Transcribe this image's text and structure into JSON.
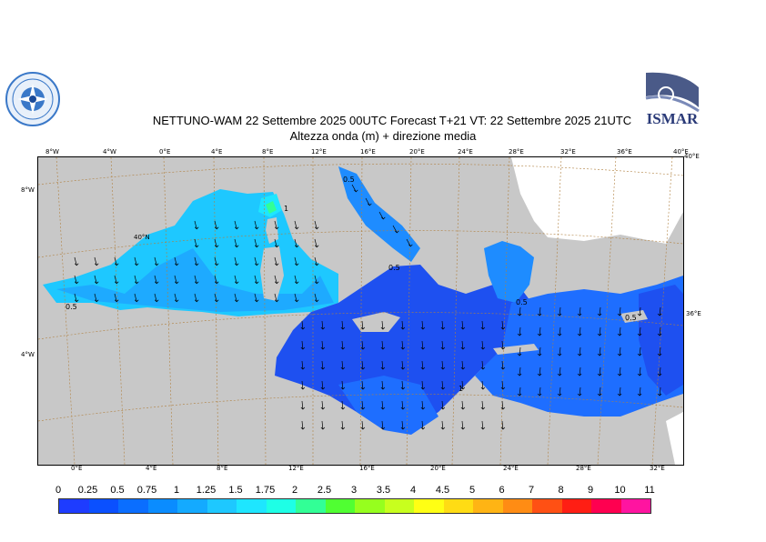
{
  "header": {
    "title_line1": "NETTUNO-WAM  22 Settembre 2025 00UTC Forecast T+21 VT: 22 Settembre 2025 21UTC",
    "title_line2": "Altezza onda (m) + direzione media"
  },
  "logos": {
    "right_logo_text": "ISMAR"
  },
  "map": {
    "top_longitude_ticks": [
      "8°W",
      "4°W",
      "0°E",
      "4°E",
      "8°E",
      "12°E",
      "16°E",
      "20°E",
      "24°E",
      "28°E",
      "32°E",
      "36°E",
      "40°E"
    ],
    "bottom_longitude_ticks": [
      "0°E",
      "4°E",
      "8°E",
      "12°E",
      "16°E",
      "20°E",
      "24°E",
      "28°E",
      "32°E"
    ],
    "latitude_ticks": {
      "left_upper": "8°W",
      "left_lower": "4°W",
      "inner": "40°N",
      "right_upper": "40°E",
      "right_mid": "36°E"
    },
    "contour_labels": [
      "0.5",
      "1",
      "0.5",
      "0.5",
      "0.5",
      "1",
      "0.5"
    ]
  },
  "colorbar": {
    "labels": [
      "0",
      "0.25",
      "0.5",
      "0.75",
      "1",
      "1.25",
      "1.5",
      "1.75",
      "2",
      "2.5",
      "3",
      "3.5",
      "4",
      "4.5",
      "5",
      "6",
      "7",
      "8",
      "9",
      "10",
      "11"
    ],
    "colors": [
      "#1e3cff",
      "#0a50ff",
      "#0a6eff",
      "#0a8cff",
      "#14aaff",
      "#1ec8ff",
      "#1ee6ff",
      "#1effe6",
      "#32ff96",
      "#50ff32",
      "#96ff1e",
      "#c8ff1e",
      "#ffff14",
      "#ffdc14",
      "#ffb414",
      "#ff8c14",
      "#ff5014",
      "#ff1e14",
      "#ff0050",
      "#ff14a0"
    ]
  },
  "colors": {
    "land": "#c8c8c8",
    "land_white": "#ffffff",
    "sea_low": "#1e50f0",
    "sea_mid": "#1e8cff",
    "sea_high": "#1ec8ff"
  }
}
